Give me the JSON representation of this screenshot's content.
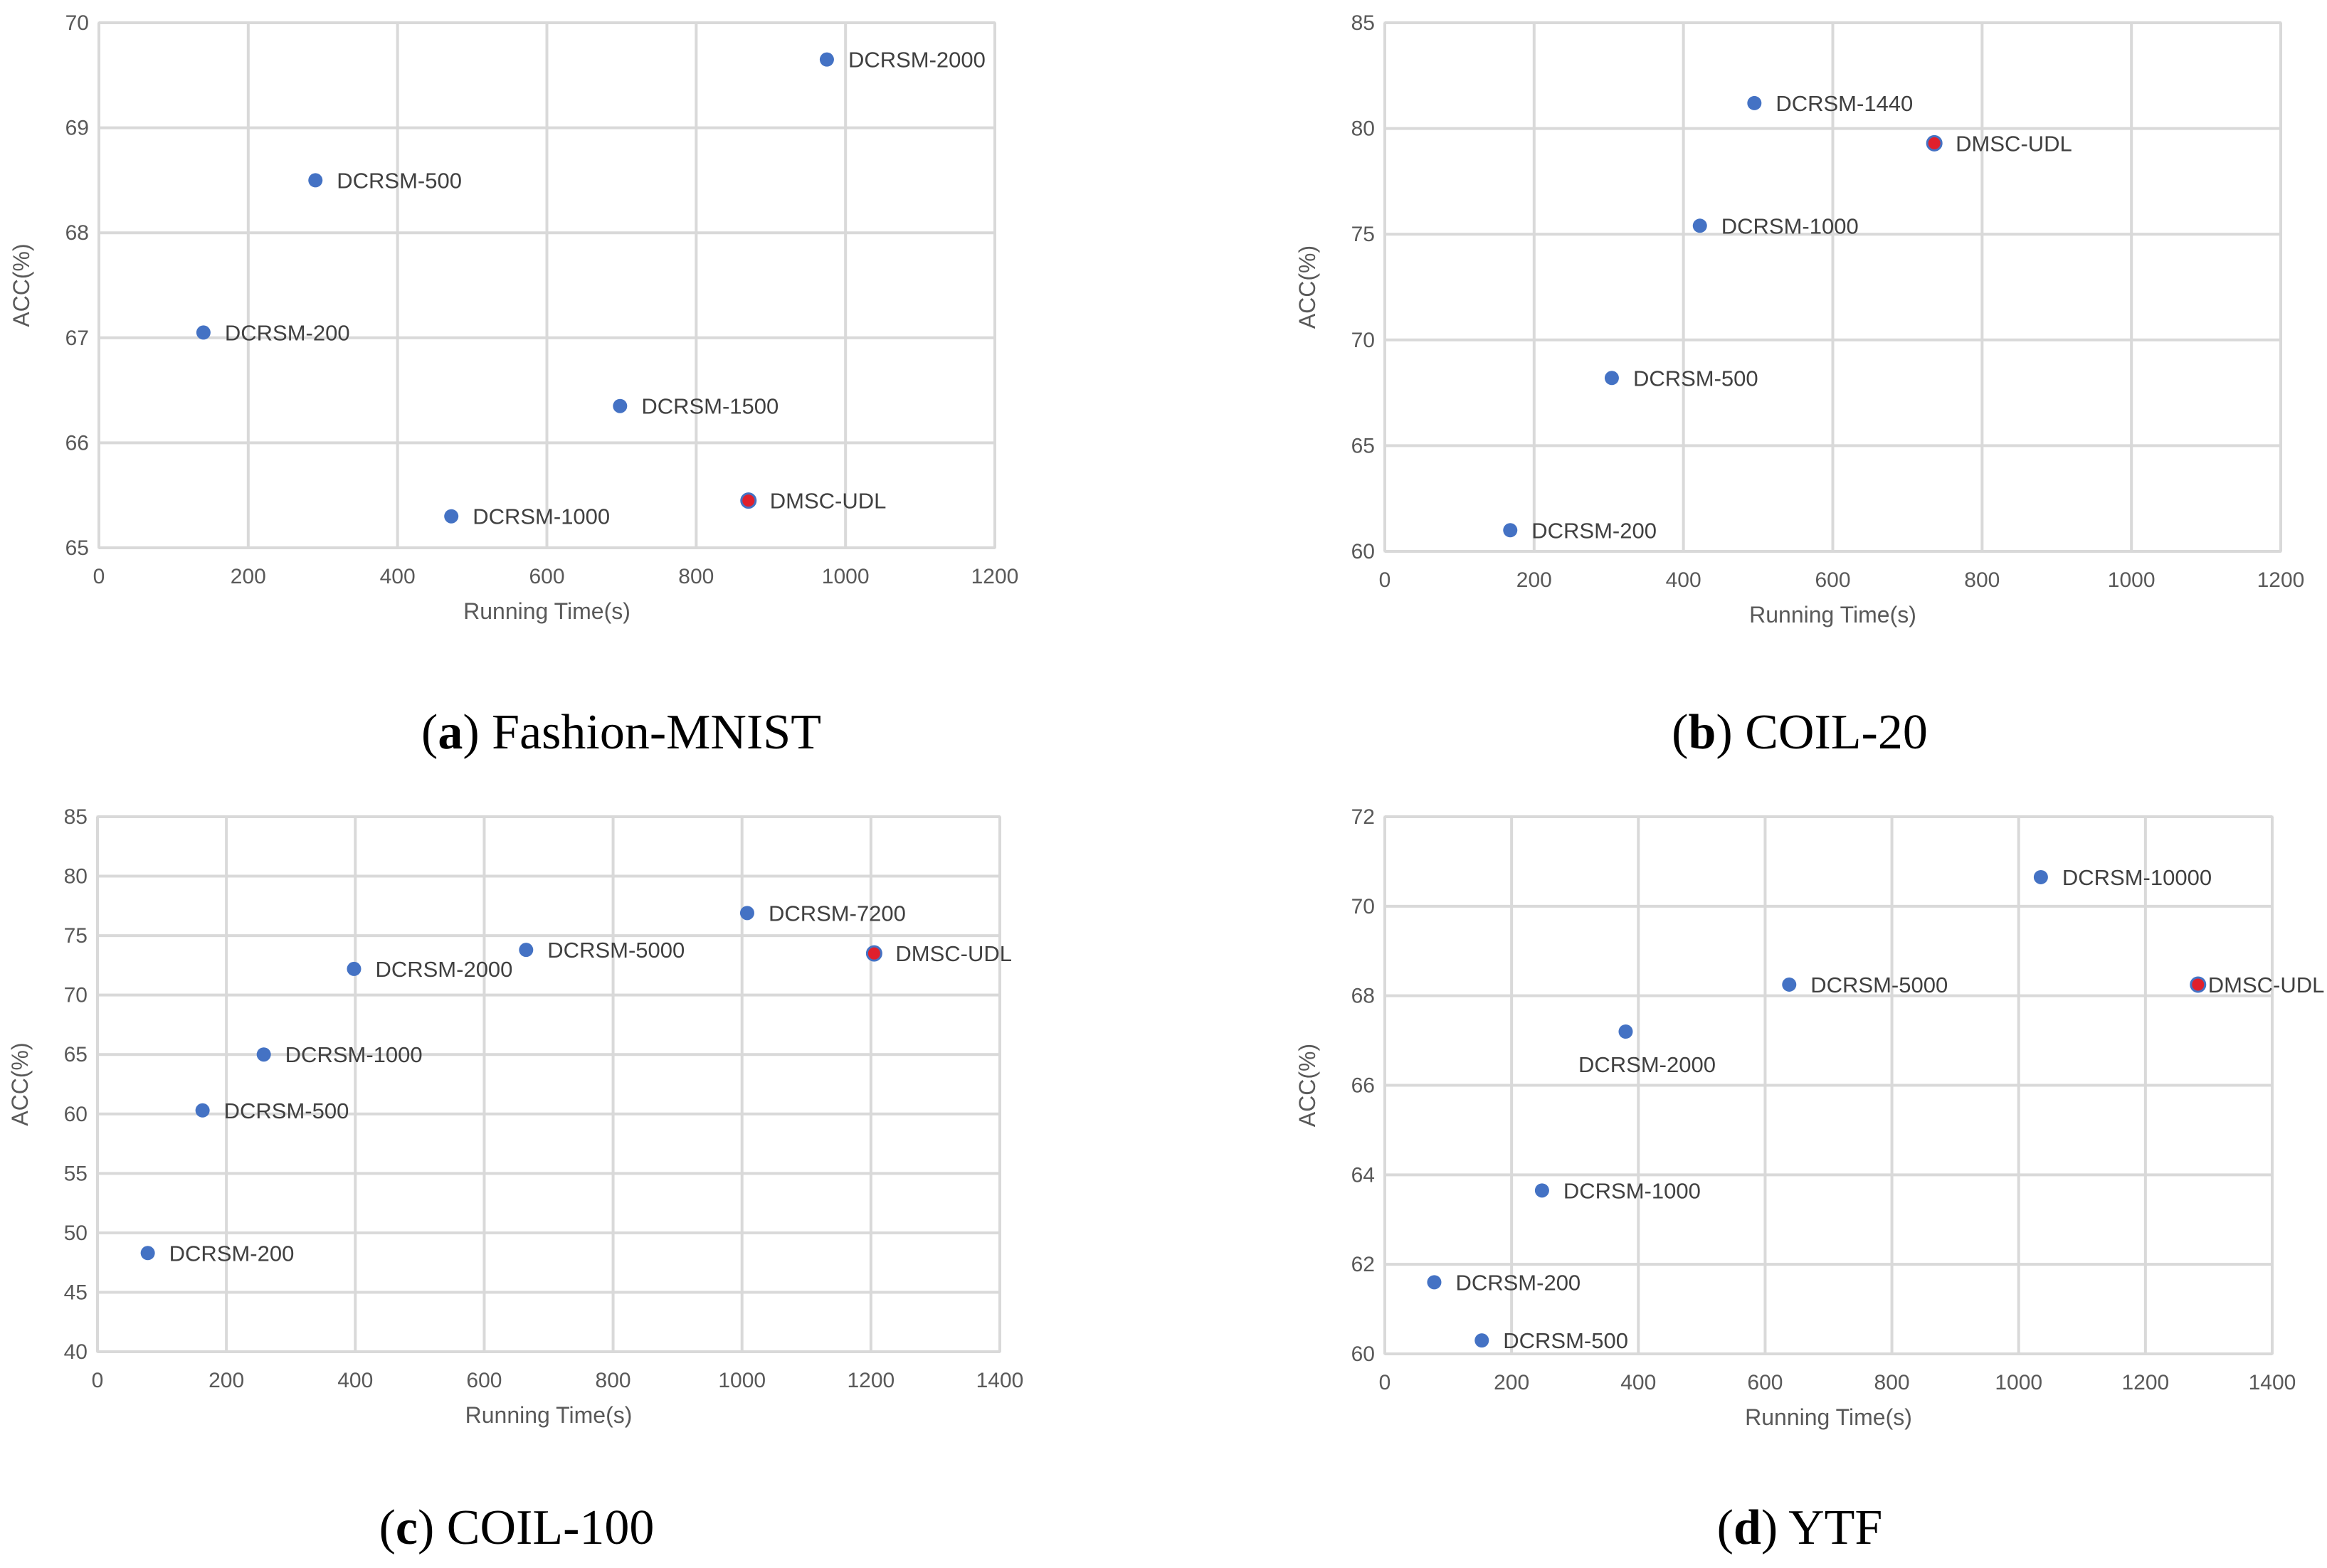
{
  "colors": {
    "point": "#4472C4",
    "highlight": "#E0202C",
    "grid": "#D9D9D9",
    "axis_text": "#595959",
    "label_text": "#404040"
  },
  "chart_data": [
    {
      "type": "scatter",
      "caption_letter": "a",
      "caption_text": " Fashion-MNIST",
      "xlabel": "Running Time(s)",
      "ylabel": "ACC(%)",
      "xlim": [
        0,
        1200
      ],
      "ylim": [
        65,
        70
      ],
      "xticks": [
        0,
        200,
        400,
        600,
        800,
        1000,
        1200
      ],
      "yticks": [
        65,
        66,
        67,
        68,
        69,
        70
      ],
      "points": [
        {
          "name": "DCRSM-200",
          "x": 140,
          "y": 67.05,
          "highlight": false,
          "label_pos": "right"
        },
        {
          "name": "DCRSM-500",
          "x": 290,
          "y": 68.5,
          "highlight": false,
          "label_pos": "right"
        },
        {
          "name": "DCRSM-1000",
          "x": 472,
          "y": 65.3,
          "highlight": false,
          "label_pos": "right"
        },
        {
          "name": "DCRSM-1500",
          "x": 698,
          "y": 66.35,
          "highlight": false,
          "label_pos": "right"
        },
        {
          "name": "DCRSM-2000",
          "x": 975,
          "y": 69.65,
          "highlight": false,
          "label_pos": "right"
        },
        {
          "name": "DMSC-UDL",
          "x": 870,
          "y": 65.45,
          "highlight": true,
          "label_pos": "right"
        }
      ]
    },
    {
      "type": "scatter",
      "caption_letter": "b",
      "caption_text": " COIL-20",
      "xlabel": "Running Time(s)",
      "ylabel": "ACC(%)",
      "xlim": [
        0,
        1200
      ],
      "ylim": [
        60,
        85
      ],
      "xticks": [
        0,
        200,
        400,
        600,
        800,
        1000,
        1200
      ],
      "yticks": [
        60,
        65,
        70,
        75,
        80,
        85
      ],
      "points": [
        {
          "name": "DCRSM-200",
          "x": 168,
          "y": 61.0,
          "highlight": false,
          "label_pos": "right"
        },
        {
          "name": "DCRSM-500",
          "x": 304,
          "y": 68.2,
          "highlight": false,
          "label_pos": "right"
        },
        {
          "name": "DCRSM-1000",
          "x": 422,
          "y": 75.4,
          "highlight": false,
          "label_pos": "right"
        },
        {
          "name": "DCRSM-1440",
          "x": 495,
          "y": 81.2,
          "highlight": false,
          "label_pos": "right"
        },
        {
          "name": "DMSC-UDL",
          "x": 736,
          "y": 79.3,
          "highlight": true,
          "label_pos": "right"
        }
      ]
    },
    {
      "type": "scatter",
      "caption_letter": "c",
      "caption_text": " COIL-100",
      "xlabel": "Running Time(s)",
      "ylabel": "ACC(%)",
      "xlim": [
        0,
        1400
      ],
      "ylim": [
        40,
        85
      ],
      "xticks": [
        0,
        200,
        400,
        600,
        800,
        1000,
        1200,
        1400
      ],
      "yticks": [
        40,
        45,
        50,
        55,
        60,
        65,
        70,
        75,
        80,
        85
      ],
      "points": [
        {
          "name": "DCRSM-200",
          "x": 78,
          "y": 48.3,
          "highlight": false,
          "label_pos": "right"
        },
        {
          "name": "DCRSM-500",
          "x": 163,
          "y": 60.3,
          "highlight": false,
          "label_pos": "right"
        },
        {
          "name": "DCRSM-1000",
          "x": 258,
          "y": 65.0,
          "highlight": false,
          "label_pos": "right"
        },
        {
          "name": "DCRSM-2000",
          "x": 398,
          "y": 72.2,
          "highlight": false,
          "label_pos": "right"
        },
        {
          "name": "DCRSM-5000",
          "x": 665,
          "y": 73.8,
          "highlight": false,
          "label_pos": "right"
        },
        {
          "name": "DCRSM-7200",
          "x": 1008,
          "y": 76.9,
          "highlight": false,
          "label_pos": "right"
        },
        {
          "name": "DMSC-UDL",
          "x": 1205,
          "y": 73.5,
          "highlight": true,
          "label_pos": "right"
        }
      ]
    },
    {
      "type": "scatter",
      "caption_letter": "d",
      "caption_text": " YTF",
      "xlabel": "Running Time(s)",
      "ylabel": "ACC(%)",
      "xlim": [
        0,
        1400
      ],
      "ylim": [
        60,
        72
      ],
      "xticks": [
        0,
        200,
        400,
        600,
        800,
        1000,
        1200,
        1400
      ],
      "yticks": [
        60,
        62,
        64,
        66,
        68,
        70,
        72
      ],
      "points": [
        {
          "name": "DCRSM-200",
          "x": 78,
          "y": 61.6,
          "highlight": false,
          "label_pos": "right"
        },
        {
          "name": "DCRSM-500",
          "x": 153,
          "y": 60.3,
          "highlight": false,
          "label_pos": "right"
        },
        {
          "name": "DCRSM-1000",
          "x": 248,
          "y": 63.65,
          "highlight": false,
          "label_pos": "right"
        },
        {
          "name": "DCRSM-2000",
          "x": 380,
          "y": 67.2,
          "highlight": false,
          "label_pos": "below"
        },
        {
          "name": "DCRSM-5000",
          "x": 638,
          "y": 68.25,
          "highlight": false,
          "label_pos": "right"
        },
        {
          "name": "DCRSM-10000",
          "x": 1035,
          "y": 70.65,
          "highlight": false,
          "label_pos": "right"
        },
        {
          "name": "DMSC-UDL",
          "x": 1283,
          "y": 68.25,
          "highlight": true,
          "label_pos": "right-tight"
        }
      ]
    }
  ]
}
